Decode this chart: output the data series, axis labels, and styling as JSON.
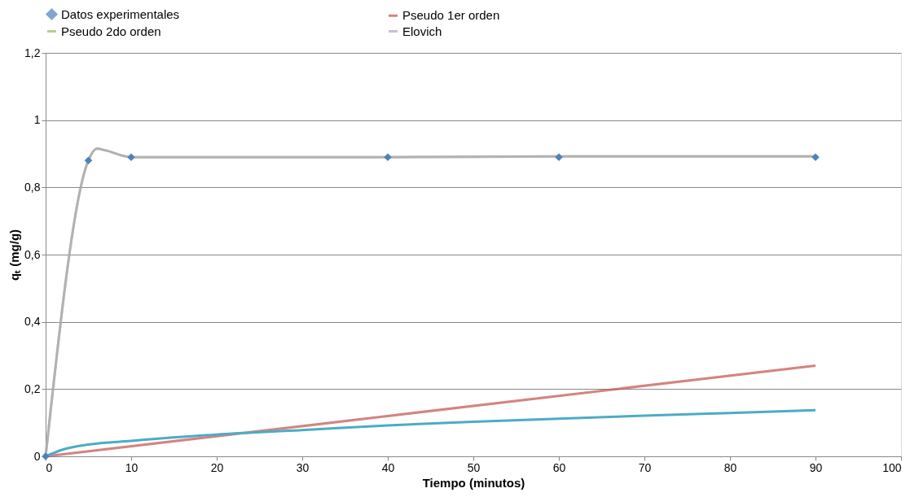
{
  "chart_data": {
    "type": "line",
    "xlabel": "Tiempo (minutos)",
    "ylabel": "qₜ (mg/g)",
    "xlim": [
      0,
      100
    ],
    "xticks": [
      0,
      10,
      20,
      30,
      40,
      50,
      60,
      70,
      80,
      90,
      100
    ],
    "ylim": [
      0,
      1.2
    ],
    "yticks": [
      {
        "value": 0,
        "label": "0"
      },
      {
        "value": 0.2,
        "label": "0,2"
      },
      {
        "value": 0.4,
        "label": "0,4"
      },
      {
        "value": 0.6,
        "label": "0,6"
      },
      {
        "value": 0.8,
        "label": "0,8"
      },
      {
        "value": 1,
        "label": "1"
      },
      {
        "value": 1.2,
        "label": "1,2"
      }
    ],
    "grid": "y",
    "legend": "top",
    "series": [
      {
        "name": "Datos experimentales",
        "type": "scatter",
        "marker": "diamond",
        "color": "#4f81bd",
        "x": [
          0,
          5,
          10,
          40,
          60,
          90
        ],
        "values": [
          0,
          0.88,
          0.89,
          0.89,
          0.89,
          0.89
        ]
      },
      {
        "name": "Pseudo 1er orden",
        "color": "#c0504d",
        "x": [
          0,
          90
        ],
        "values": [
          0,
          0.27
        ]
      },
      {
        "name": "Pseudo 2do orden",
        "color": "#9bbb59",
        "x": [
          0,
          5,
          6,
          7,
          10,
          40,
          60,
          90
        ],
        "values": [
          0,
          0.88,
          0.915,
          0.91,
          0.89,
          0.89,
          0.892,
          0.892
        ]
      },
      {
        "name": "Elovich",
        "color": "#b3a2c7",
        "x": [
          0,
          5,
          6,
          7,
          10,
          40,
          60,
          90
        ],
        "values": [
          0,
          0.88,
          0.915,
          0.91,
          0.89,
          0.89,
          0.892,
          0.892
        ]
      },
      {
        "color": "#4bacc6",
        "x": [
          0,
          2,
          5,
          10,
          20,
          30,
          40,
          50,
          60,
          70,
          80,
          90
        ],
        "values": [
          0,
          0.02,
          0.035,
          0.046,
          0.065,
          0.078,
          0.092,
          0.103,
          0.112,
          0.121,
          0.129,
          0.137
        ]
      }
    ]
  }
}
